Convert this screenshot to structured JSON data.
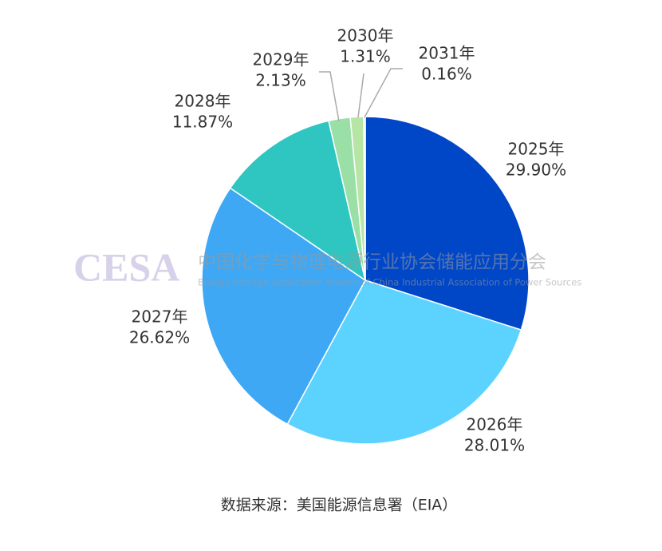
{
  "chart_data": {
    "type": "pie",
    "categories": [
      "2025年",
      "2026年",
      "2027年",
      "2028年",
      "2029年",
      "2030年",
      "2031年"
    ],
    "values": [
      29.9,
      28.01,
      26.62,
      11.87,
      2.13,
      1.31,
      0.16
    ],
    "value_labels": [
      "29.90%",
      "28.01%",
      "26.62%",
      "11.87%",
      "2.13%",
      "1.31%",
      "0.16%"
    ],
    "colors": [
      "#0047c8",
      "#5cd3ff",
      "#3ea8f5",
      "#2fc6c1",
      "#9ae0a6",
      "#b6e5a6",
      "#cbe9c2"
    ],
    "source": "数据来源：美国能源信息署（EIA）",
    "watermark": {
      "logo": "CESA",
      "name": "中国化学与物理电源行业协会储能应用分会",
      "english": "Energy Storage Application Branch of China Industrial Association of Power Sources"
    }
  }
}
